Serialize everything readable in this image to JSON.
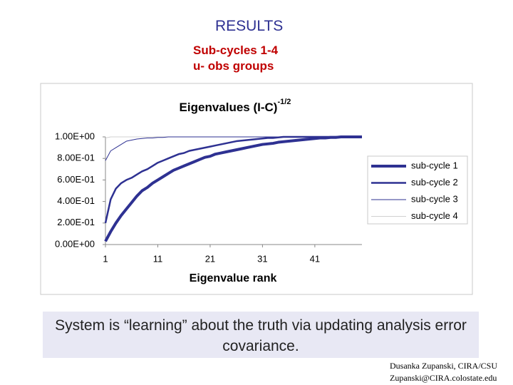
{
  "slide": {
    "heading": "RESULTS",
    "subheading": [
      "Sub-cycles 1-4",
      "u- obs groups"
    ],
    "caption": "System is “learning” about the truth via updating analysis error covariance.",
    "footer": [
      "Dusanka Zupanski, CIRA/CSU",
      "Zupanski@CIRA.colostate.edu"
    ]
  },
  "chart_data": {
    "type": "line",
    "title": "Eigenvalues (I-C)",
    "title_superscript": "-1/2",
    "x_label": "Eigenvalue rank",
    "x": [
      1,
      2,
      3,
      4,
      5,
      6,
      7,
      8,
      9,
      10,
      11,
      12,
      13,
      14,
      15,
      16,
      17,
      18,
      19,
      20,
      21,
      22,
      23,
      24,
      25,
      26,
      27,
      28,
      29,
      30,
      31,
      32,
      33,
      34,
      35,
      36,
      37,
      38,
      39,
      40,
      41,
      42,
      43,
      44,
      45,
      46,
      47,
      48,
      49,
      50
    ],
    "xlim": [
      1,
      50
    ],
    "xticks": [
      1,
      11,
      21,
      31,
      41
    ],
    "ylim": [
      0,
      1
    ],
    "yticks": [
      {
        "value": 0,
        "label": "0.00E+00"
      },
      {
        "value": 0.2,
        "label": "2.00E-01"
      },
      {
        "value": 0.4,
        "label": "4.00E-01"
      },
      {
        "value": 0.6,
        "label": "6.00E-01"
      },
      {
        "value": 0.8,
        "label": "8.00E-01"
      },
      {
        "value": 1,
        "label": "1.00E+00"
      }
    ],
    "grid": false,
    "legend": "right",
    "series": [
      {
        "name": "sub-cycle 1",
        "color": "#2e3192",
        "line_width": 4,
        "values": [
          0.03,
          0.12,
          0.2,
          0.27,
          0.33,
          0.39,
          0.45,
          0.5,
          0.53,
          0.57,
          0.6,
          0.63,
          0.66,
          0.69,
          0.71,
          0.73,
          0.75,
          0.77,
          0.79,
          0.81,
          0.82,
          0.84,
          0.85,
          0.86,
          0.87,
          0.88,
          0.89,
          0.9,
          0.91,
          0.92,
          0.93,
          0.935,
          0.94,
          0.95,
          0.955,
          0.96,
          0.965,
          0.97,
          0.975,
          0.98,
          0.985,
          0.99,
          0.99,
          0.995,
          0.995,
          1,
          1,
          1,
          1,
          1
        ]
      },
      {
        "name": "sub-cycle 2",
        "color": "#2e3192",
        "line_width": 2.5,
        "values": [
          0.2,
          0.42,
          0.52,
          0.57,
          0.6,
          0.62,
          0.65,
          0.68,
          0.7,
          0.73,
          0.76,
          0.78,
          0.8,
          0.82,
          0.84,
          0.85,
          0.87,
          0.88,
          0.89,
          0.9,
          0.91,
          0.92,
          0.93,
          0.94,
          0.95,
          0.96,
          0.965,
          0.97,
          0.975,
          0.98,
          0.985,
          0.99,
          0.99,
          0.995,
          1,
          1,
          1,
          1,
          1,
          1,
          1,
          1,
          1,
          1,
          1,
          1,
          1,
          1,
          1,
          1
        ]
      },
      {
        "name": "sub-cycle 3",
        "color": "#2e3192",
        "line_width": 1,
        "values": [
          0.78,
          0.87,
          0.9,
          0.93,
          0.96,
          0.97,
          0.98,
          0.985,
          0.99,
          0.99,
          0.995,
          0.995,
          1,
          1,
          1,
          1,
          1,
          1,
          1,
          1,
          1,
          1,
          1,
          1,
          1,
          1,
          1,
          1,
          1,
          1,
          1,
          1,
          1,
          1,
          1,
          1,
          1,
          1,
          1,
          1,
          1,
          1,
          1,
          1,
          1,
          1,
          1,
          1,
          1,
          1
        ]
      },
      {
        "name": "sub-cycle 4",
        "color": "#d0d0d0",
        "line_width": 1,
        "values": [
          0.99,
          1,
          1,
          1,
          1,
          1,
          1,
          1,
          1,
          1,
          1,
          1,
          1,
          1,
          1,
          1,
          1,
          1,
          1,
          1,
          1,
          1,
          1,
          1,
          1,
          1,
          1,
          1,
          1,
          1,
          1,
          1,
          1,
          1,
          1,
          1,
          1,
          1,
          1,
          1,
          1,
          1,
          1,
          1,
          1,
          1,
          1,
          1,
          1,
          1
        ]
      }
    ]
  }
}
